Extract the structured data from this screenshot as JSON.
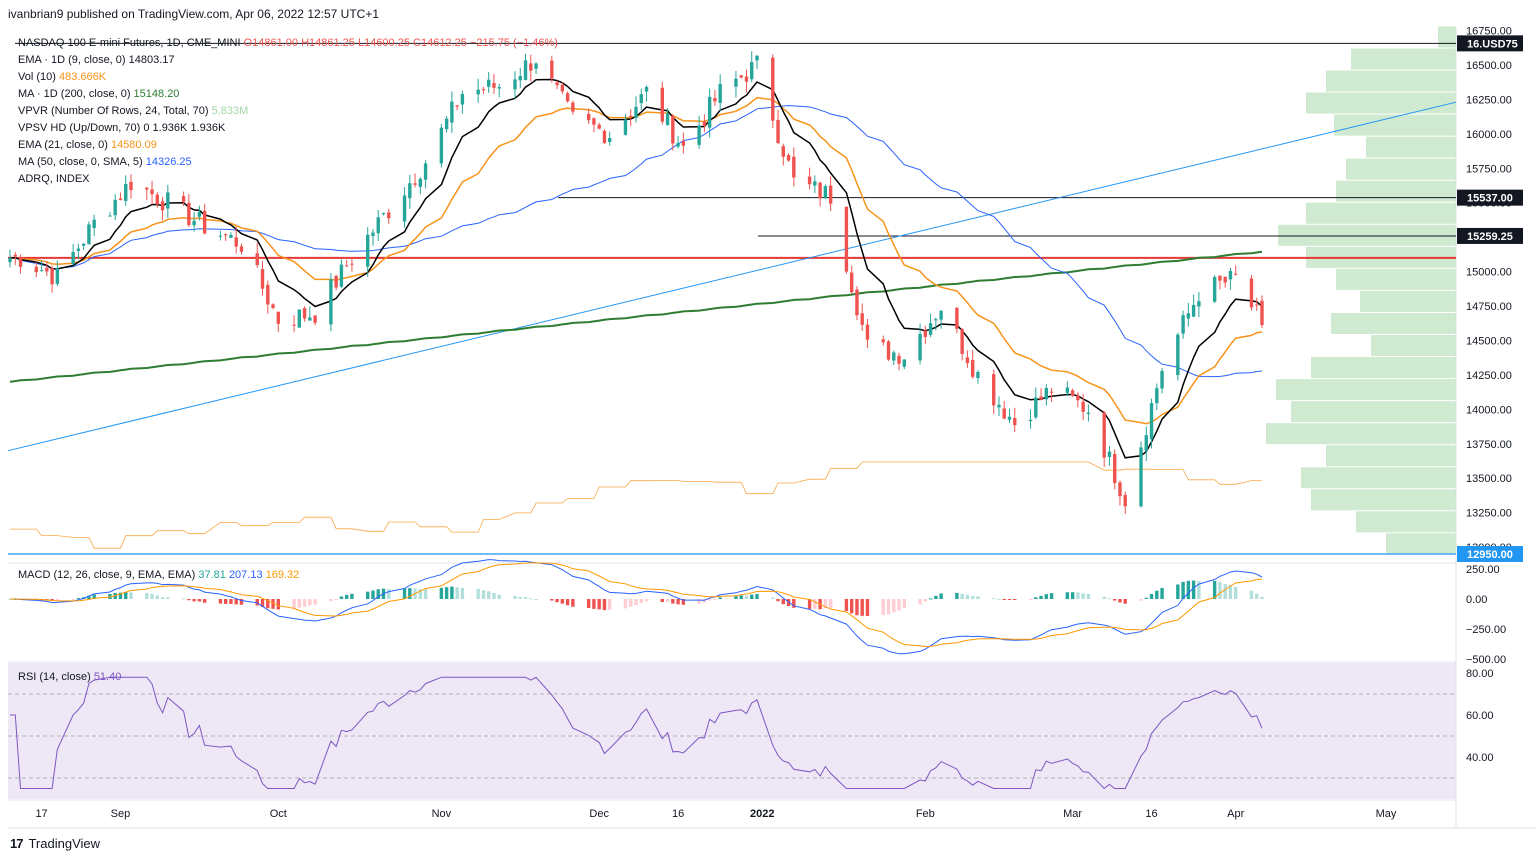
{
  "header": "ivanbrian9 published on TradingView.com, Apr 06, 2022 12:57 UTC+1",
  "brand": {
    "name": "TradingView",
    "logo": "tv-logo-icon"
  },
  "colors": {
    "up": "#26a69a",
    "down": "#ef5350",
    "ema9": "#000000",
    "ema21": "#f7931a",
    "ma200": "#2e7d32",
    "ma50": "#2962ff",
    "trend": "#2196f3",
    "support": "#e53935",
    "vp": "#c8e6c9",
    "macd": "#2962ff",
    "signal": "#ff9800",
    "rsi": "#7e57c2"
  },
  "legend": [
    {
      "label": "NASDAQ 100 E-mini Futures, 1D, CME_MINI",
      "values": [
        "O14861.00",
        "H14861.25",
        "L14600.25",
        "C14612.25",
        "−215.75 (−1.46%)"
      ],
      "color": "#ef5350"
    },
    {
      "label": "EMA · 1D (9, close, 0)",
      "values": [
        "14803.17"
      ],
      "color": "#131722"
    },
    {
      "label": "Vol (10)",
      "values": [
        "483.666K"
      ],
      "color": "#f7931a"
    },
    {
      "label": "MA · 1D (200, close, 0)",
      "values": [
        "15148.20"
      ],
      "color": "#2e7d32"
    },
    {
      "label": "VPVR (Number Of Rows, 24, Total, 70)",
      "values": [
        "5.833M"
      ],
      "color": "#a5d6a7"
    },
    {
      "label": "VPSV HD (Up/Down, 70)",
      "values": [
        "0",
        "1.936K",
        "1.936K"
      ],
      "color": "#131722"
    },
    {
      "label": "EMA (21, close, 0)",
      "values": [
        "14580.09"
      ],
      "color": "#f7931a"
    },
    {
      "label": "MA (50, close, 0, SMA, 5)",
      "values": [
        "14326.25"
      ],
      "color": "#2962ff"
    },
    {
      "label": "ADRQ, INDEX",
      "values": [],
      "color": "#131722"
    }
  ],
  "price_ticks": [
    "16750.00",
    "16500.00",
    "16250.00",
    "16000.00",
    "15750.00",
    "15500.00",
    "15250.00",
    "15000.00",
    "14750.00",
    "14500.00",
    "14250.00",
    "14000.00",
    "13750.00",
    "13500.00",
    "13250.00",
    "13000.00"
  ],
  "price_tags": [
    {
      "label": "16.USD75",
      "price": 16657
    },
    {
      "label": "15537.00",
      "price": 15537
    },
    {
      "label": "15259.25",
      "price": 15259
    },
    {
      "label": "12950.00",
      "price": 12950
    }
  ],
  "macd": {
    "label": "MACD (12, 26, close, 9, EMA, EMA)",
    "values": [
      "37.81",
      "207.13",
      "169.32"
    ],
    "ticks": [
      "250.00",
      "0.00",
      "−250.00",
      "−500.00"
    ]
  },
  "rsi": {
    "label": "RSI (14, close)",
    "value": "51.40",
    "ticks": [
      "80.00",
      "60.00",
      "40.00"
    ]
  },
  "x_labels": [
    "17",
    "Sep",
    "Oct",
    "Nov",
    "Dec",
    "16",
    "2022",
    "Feb",
    "Mar",
    "16",
    "Apr",
    "May"
  ],
  "chart_data": {
    "type": "line",
    "title": "NASDAQ 100 E-mini Futures, 1D, CME_MINI",
    "close_series": [
      {
        "x": "2021-08-13",
        "y": 15100
      },
      {
        "x": "2021-08-20",
        "y": 14960
      },
      {
        "x": "2021-08-27",
        "y": 15350
      },
      {
        "x": "2021-09-03",
        "y": 15650
      },
      {
        "x": "2021-09-10",
        "y": 15500
      },
      {
        "x": "2021-09-17",
        "y": 15330
      },
      {
        "x": "2021-09-24",
        "y": 15200
      },
      {
        "x": "2021-10-01",
        "y": 14650
      },
      {
        "x": "2021-10-08",
        "y": 14700
      },
      {
        "x": "2021-10-15",
        "y": 15100
      },
      {
        "x": "2021-10-22",
        "y": 15450
      },
      {
        "x": "2021-10-29",
        "y": 15800
      },
      {
        "x": "2021-11-05",
        "y": 16300
      },
      {
        "x": "2021-11-12",
        "y": 16350
      },
      {
        "x": "2021-11-19",
        "y": 16550
      },
      {
        "x": "2021-11-26",
        "y": 16100
      },
      {
        "x": "2021-12-03",
        "y": 16000
      },
      {
        "x": "2021-12-10",
        "y": 16300
      },
      {
        "x": "2021-12-17",
        "y": 15900
      },
      {
        "x": "2021-12-24",
        "y": 16300
      },
      {
        "x": "2021-12-31",
        "y": 16500
      },
      {
        "x": "2022-01-07",
        "y": 15650
      },
      {
        "x": "2022-01-14",
        "y": 15550
      },
      {
        "x": "2022-01-21",
        "y": 14450
      },
      {
        "x": "2022-01-28",
        "y": 14400
      },
      {
        "x": "2022-02-04",
        "y": 14750
      },
      {
        "x": "2022-02-11",
        "y": 14250
      },
      {
        "x": "2022-02-18",
        "y": 13900
      },
      {
        "x": "2022-02-25",
        "y": 14150
      },
      {
        "x": "2022-03-04",
        "y": 14000
      },
      {
        "x": "2022-03-11",
        "y": 13350
      },
      {
        "x": "2022-03-18",
        "y": 14300
      },
      {
        "x": "2022-03-25",
        "y": 14850
      },
      {
        "x": "2022-04-01",
        "y": 14950
      },
      {
        "x": "2022-04-06",
        "y": 14612
      }
    ],
    "horizontal_levels": [
      16657,
      15537,
      15259,
      15100,
      12950
    ],
    "ylim": [
      12950,
      16780
    ]
  }
}
